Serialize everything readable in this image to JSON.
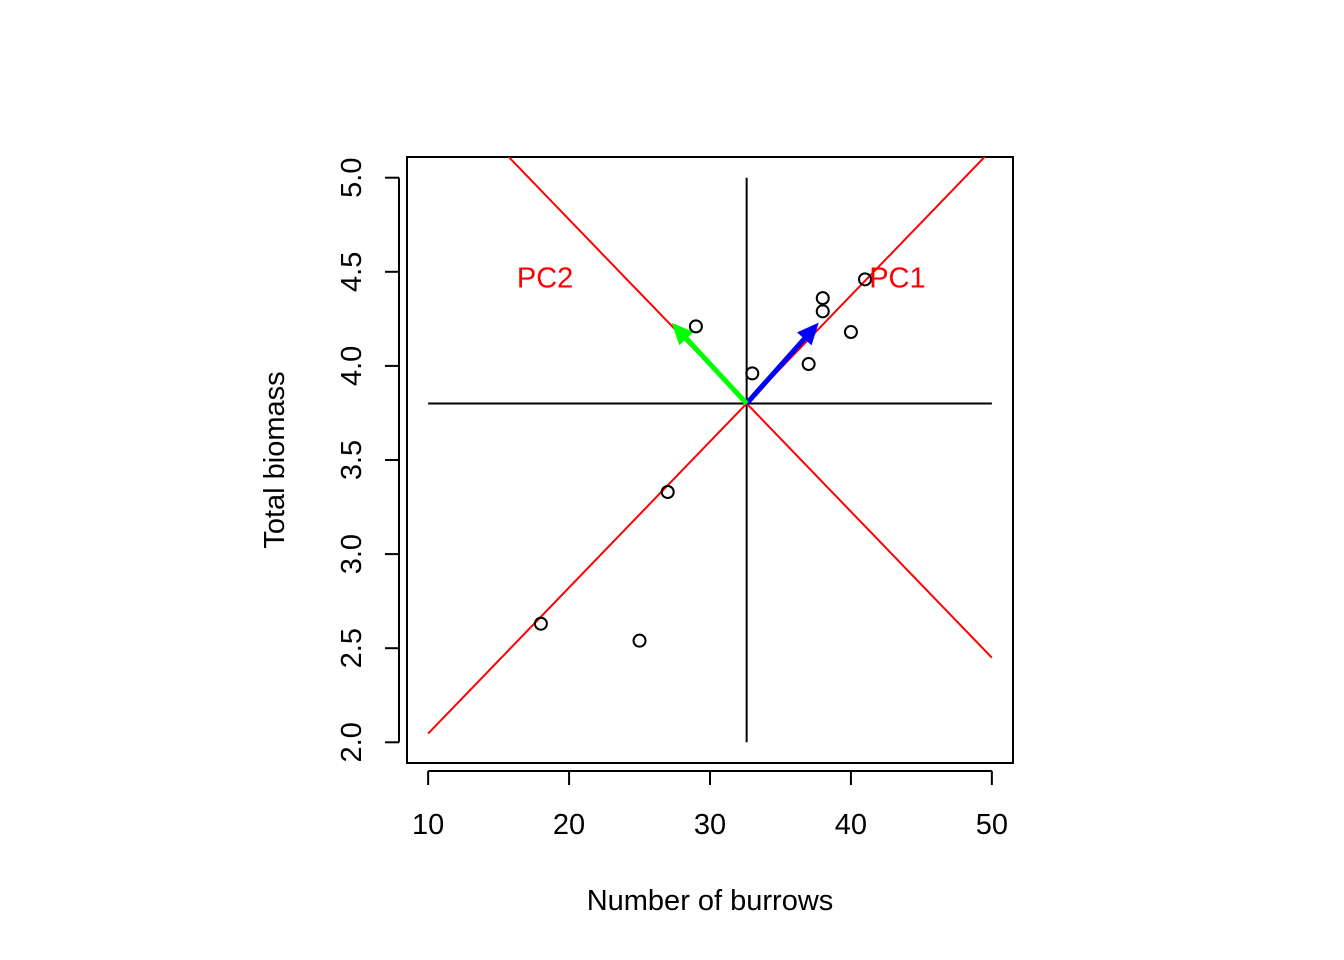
{
  "chart_data": {
    "type": "scatter",
    "title": "",
    "xlabel": "Number of burrows",
    "ylabel": "Total biomass",
    "xlim": [
      8.5,
      51.5
    ],
    "ylim": [
      1.89,
      5.11
    ],
    "x_ticks": [
      "10",
      "20",
      "30",
      "40",
      "50"
    ],
    "x_tick_values": [
      10,
      20,
      30,
      40,
      50
    ],
    "y_ticks": [
      "2.0",
      "2.5",
      "3.0",
      "3.5",
      "4.0",
      "4.5",
      "5.0"
    ],
    "y_tick_values": [
      2.0,
      2.5,
      3.0,
      3.5,
      4.0,
      4.5,
      5.0
    ],
    "points": [
      {
        "x": 18,
        "y": 2.63
      },
      {
        "x": 25,
        "y": 2.54
      },
      {
        "x": 27,
        "y": 3.33
      },
      {
        "x": 29,
        "y": 4.21
      },
      {
        "x": 33,
        "y": 3.96
      },
      {
        "x": 37,
        "y": 4.01
      },
      {
        "x": 38,
        "y": 4.36
      },
      {
        "x": 38,
        "y": 4.29
      },
      {
        "x": 40,
        "y": 4.18
      },
      {
        "x": 41,
        "y": 4.46
      }
    ],
    "center": {
      "x": 32.6,
      "y": 3.8
    },
    "reference_lines": {
      "horizontal": {
        "y": 3.8,
        "x_from": 10,
        "x_to": 50,
        "color": "#000000"
      },
      "vertical": {
        "x": 32.6,
        "y_from": 2.0,
        "y_to": 5.0,
        "color": "#000000"
      }
    },
    "pc_lines": [
      {
        "name": "PC1",
        "slope": 0.0776,
        "color": "#ff0000",
        "label_x": 43.3,
        "label_y": 4.47
      },
      {
        "name": "PC2",
        "slope": -0.0776,
        "color": "#ff0000",
        "label_x": 18.3,
        "label_y": 4.47
      }
    ],
    "arrows": [
      {
        "name": "PC1-loading",
        "to_x": 37.6,
        "to_y": 4.22,
        "color": "#0000ff"
      },
      {
        "name": "PC2-loading",
        "to_x": 27.4,
        "to_y": 4.22,
        "color": "#00ff00"
      }
    ],
    "grid": false,
    "legend": "none"
  }
}
